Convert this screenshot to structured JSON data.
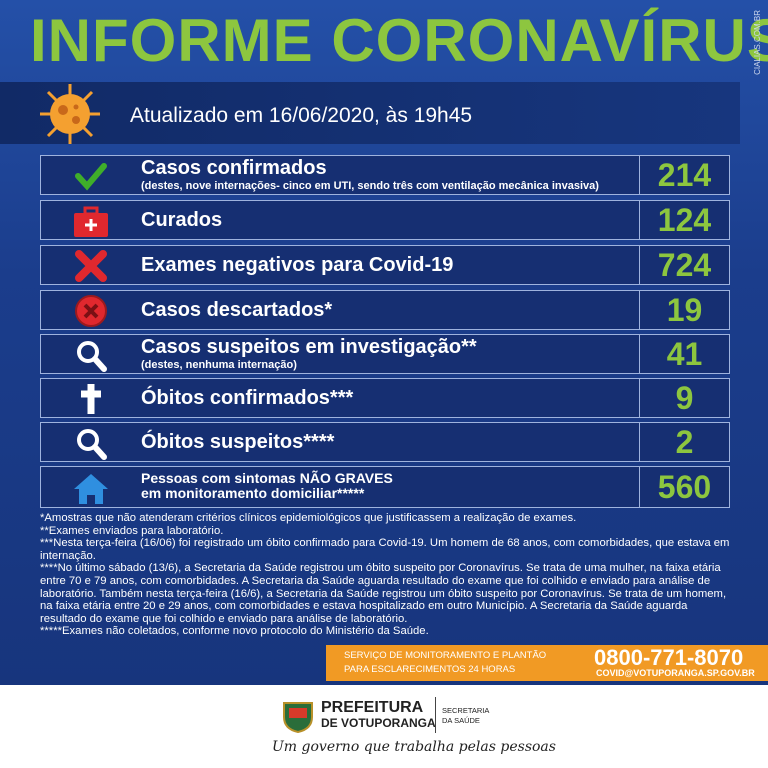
{
  "header": {
    "title": "INFORME CORONAVÍRUS",
    "site": "CIALIAS.COM.BR",
    "updated": "Atualizado em 16/06/2020, às 19h45"
  },
  "rows": [
    {
      "label": "Casos confirmados",
      "sub": "(destes, nove internações- cinco em UTI, sendo três com ventilação mecânica invasiva)",
      "value": 214
    },
    {
      "label": "Curados",
      "value": 124
    },
    {
      "label": "Exames negativos para Covid-19",
      "value": 724
    },
    {
      "label": "Casos descartados*",
      "value": 19
    },
    {
      "label": "Casos suspeitos em investigação**",
      "sub": "(destes, nenhuma internação)",
      "value": 41
    },
    {
      "label": "Óbitos confirmados***",
      "value": 9
    },
    {
      "label": "Óbitos suspeitos****",
      "value": 2
    },
    {
      "label": "Pessoas com sintomas NÃO GRAVES",
      "sub": "em monitoramento domiciliar*****",
      "value": 560
    }
  ],
  "notes": [
    "*Amostras que não atenderam critérios clínicos epidemiológicos que justificassem a realização de exames.",
    "**Exames enviados para laboratório.",
    "***Nesta terça-feira (16/06) foi registrado um óbito confirmado para Covid-19. Um homem de 68 anos, com comorbidades, que estava em internação.",
    "****No último sábado (13/6), a Secretaria da Saúde registrou um óbito suspeito por Coronavírus. Se trata de uma mulher, na faixa etária entre 70 e 79 anos, com comorbidades. A Secretaria da Saúde aguarda resultado do exame que foi colhido e enviado para análise de laboratório. Também nesta terça-feira (16/6), a Secretaria da Saúde registrou um óbito suspeito por Coronavírus. Se trata de um homem, na faixa etária entre 20 e 29 anos, com comorbidades e estava hospitalizado em outro Município. A Secretaria da Saúde aguarda resultado do exame que foi colhido e enviado para análise de laboratório.",
    "*****Exames não coletados, conforme novo protocolo do Ministério da Saúde."
  ],
  "contact": {
    "service_line1": "SERVIÇO DE MONITORAMENTO E PLANTÃO",
    "service_line2": "PARA ESCLARECIMENTOS 24 HORAS",
    "phone": "0800-771-8070",
    "email": "COVID@VOTUPORANGA.SP.GOV.BR"
  },
  "footer": {
    "org_line1": "PREFEITURA",
    "org_line2": "DE VOTUPORANGA",
    "dept_line1": "SECRETARIA",
    "dept_line2": "DA SAÚDE",
    "slogan": "Um governo que trabalha pelas pessoas"
  }
}
